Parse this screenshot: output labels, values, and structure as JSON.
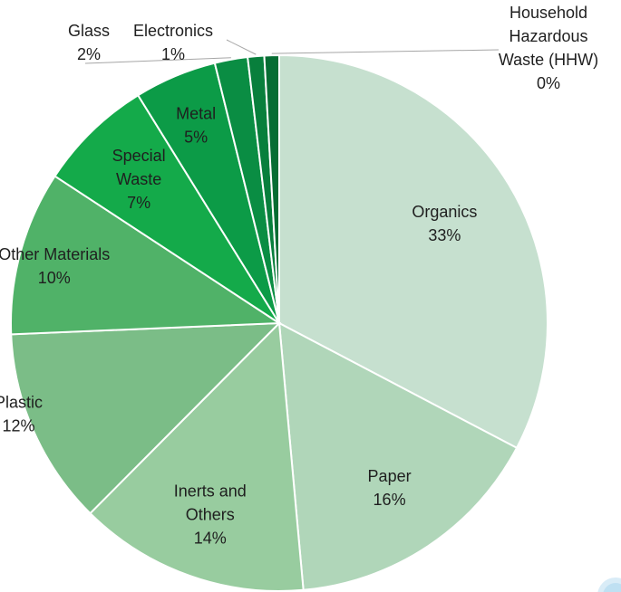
{
  "chart_data": {
    "type": "pie",
    "title": "",
    "start_angle_deg": 0,
    "direction": "clockwise",
    "slices": [
      {
        "name": "Organics",
        "value": 33,
        "label": "33%",
        "color": "#c6e0cf"
      },
      {
        "name": "Paper",
        "value": 16,
        "label": "16%",
        "color": "#b0d6b9"
      },
      {
        "name": "Inerts and Others",
        "value": 14,
        "label": "14%",
        "color": "#98cc9f"
      },
      {
        "name": "Plastic",
        "value": 12,
        "label": "12%",
        "color": "#7bbd87"
      },
      {
        "name": "Other Materials",
        "value": 10,
        "label": "10%",
        "color": "#50b268"
      },
      {
        "name": "Special Waste",
        "value": 7,
        "label": "7%",
        "color": "#14aa4a"
      },
      {
        "name": "Metal",
        "value": 5,
        "label": "5%",
        "color": "#0c9b47"
      },
      {
        "name": "Glass",
        "value": 2,
        "label": "2%",
        "color": "#0a8d43"
      },
      {
        "name": "Electronics",
        "value": 1,
        "label": "1%",
        "color": "#087f3c"
      },
      {
        "name": "Household Hazardous Waste (HHW)",
        "value": 0,
        "label": "0%",
        "color": "#066d33"
      }
    ],
    "label_lines": {
      "Organics": [
        "Organics",
        "33%"
      ],
      "Paper": [
        "Paper",
        "16%"
      ],
      "Inerts and Others": [
        "Inerts and",
        "Others",
        "14%"
      ],
      "Plastic": [
        "Plastic",
        "12%"
      ],
      "Other Materials": [
        "Other Materials",
        "10%"
      ],
      "Special Waste": [
        "Special",
        "Waste",
        "7%"
      ],
      "Metal": [
        "Metal",
        "5%"
      ],
      "Glass": [
        "Glass",
        "2%"
      ],
      "Electronics": [
        "Electronics",
        "1%"
      ],
      "Household Hazardous Waste (HHW)": [
        "Household",
        "Hazardous",
        "Waste (HHW)",
        "0%"
      ]
    }
  }
}
